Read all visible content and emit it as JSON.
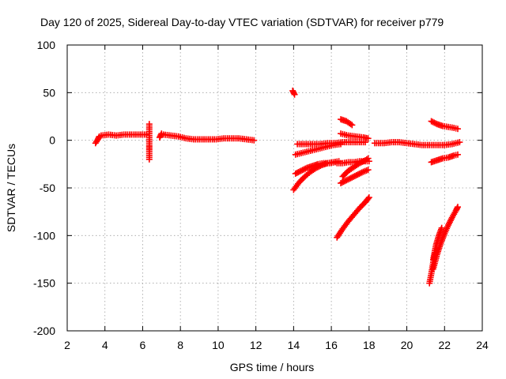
{
  "chart_data": {
    "type": "scatter",
    "title": "Day 120 of 2025, Sidereal Day-to-day VTEC variation (SDTVAR) for receiver p779",
    "xlabel": "GPS time / hours",
    "ylabel": "SDTVAR / TECUs",
    "xlim": [
      2,
      24
    ],
    "ylim": [
      -200,
      100
    ],
    "xticks": [
      2,
      4,
      6,
      8,
      10,
      12,
      14,
      16,
      18,
      20,
      22,
      24
    ],
    "yticks": [
      -200,
      -150,
      -100,
      -50,
      0,
      50,
      100
    ],
    "grid": true,
    "marker_color": "#ff0000",
    "marker": "plus",
    "series": [
      {
        "name": "SDTVAR",
        "segments": [
          {
            "x": [
              3.5,
              3.6,
              3.7
            ],
            "y": [
              -3,
              0,
              4
            ]
          },
          {
            "x": [
              3.8,
              4.2,
              4.6,
              5.0,
              5.4,
              5.8,
              6.2
            ],
            "y": [
              5,
              6,
              5,
              6,
              6,
              6,
              6
            ]
          },
          {
            "x": [
              6.35,
              6.35,
              6.35,
              6.35,
              6.35
            ],
            "y": [
              17,
              3,
              -5,
              -10,
              -20
            ]
          },
          {
            "x": [
              6.9,
              7.0
            ],
            "y": [
              3,
              7
            ]
          },
          {
            "x": [
              7.1,
              7.5,
              7.9,
              8.3,
              8.7,
              9.1,
              9.5,
              9.9,
              10.3,
              10.7,
              11.1,
              11.5,
              11.9
            ],
            "y": [
              6,
              5,
              4,
              2,
              1,
              1,
              1,
              1,
              2,
              2,
              2,
              1,
              0
            ]
          },
          {
            "x": [
              13.95,
              14.05
            ],
            "y": [
              52,
              48
            ]
          },
          {
            "x": [
              14.0,
              14.3,
              14.6,
              14.9,
              15.2,
              15.5,
              15.8,
              16.1,
              16.4
            ],
            "y": [
              -52,
              -44,
              -38,
              -33,
              -29,
              -26,
              -24,
              -23,
              -22
            ]
          },
          {
            "x": [
              14.1,
              14.4,
              14.7,
              15.0,
              15.3,
              15.6,
              15.9,
              16.2
            ],
            "y": [
              -35,
              -32,
              -29,
              -27,
              -25,
              -24,
              -24,
              -23
            ]
          },
          {
            "x": [
              14.1,
              14.5,
              14.9,
              15.3,
              15.7,
              16.1,
              16.5
            ],
            "y": [
              -15,
              -13,
              -11,
              -9,
              -7,
              -5,
              -4
            ]
          },
          {
            "x": [
              14.2,
              14.6,
              15.0,
              15.4,
              15.8,
              16.2,
              16.6,
              17.0,
              17.4,
              17.8
            ],
            "y": [
              -4,
              -4,
              -4,
              -4,
              -3,
              -3,
              -2,
              -2,
              -2,
              -2
            ]
          },
          {
            "x": [
              16.3,
              16.6,
              16.9,
              17.2,
              17.5,
              17.8,
              18.0
            ],
            "y": [
              -24,
              -24,
              -23,
              -23,
              -22,
              -22,
              -22
            ]
          },
          {
            "x": [
              16.5,
              16.8,
              17.1,
              17.4,
              17.7,
              17.95
            ],
            "y": [
              -45,
              -42,
              -39,
              -36,
              -33,
              -31
            ]
          },
          {
            "x": [
              16.6,
              16.9,
              17.2,
              17.5,
              17.8,
              17.95
            ],
            "y": [
              -38,
              -32,
              -28,
              -24,
              -21,
              -19
            ]
          },
          {
            "x": [
              16.5,
              16.8,
              17.1
            ],
            "y": [
              22,
              20,
              16
            ]
          },
          {
            "x": [
              16.5,
              16.9,
              17.3,
              17.7,
              17.95
            ],
            "y": [
              7,
              5,
              4,
              3,
              2
            ]
          },
          {
            "x": [
              16.3,
              16.6,
              16.9,
              17.2,
              17.5,
              17.8,
              18.0
            ],
            "y": [
              -102,
              -93,
              -85,
              -78,
              -71,
              -65,
              -60
            ]
          },
          {
            "x": [
              18.3,
              18.8,
              19.2,
              19.6,
              20.0,
              20.4,
              20.8,
              21.2,
              21.6,
              22.0,
              22.4,
              22.8
            ],
            "y": [
              -3,
              -3,
              -2,
              -2,
              -3,
              -4,
              -5,
              -5,
              -5,
              -5,
              -4,
              -2
            ]
          },
          {
            "x": [
              21.3,
              21.6,
              21.9,
              22.2,
              22.5,
              22.7
            ],
            "y": [
              20,
              17,
              15,
              14,
              13,
              12
            ]
          },
          {
            "x": [
              21.3,
              21.6,
              21.9,
              22.2,
              22.5,
              22.7
            ],
            "y": [
              -23,
              -21,
              -19,
              -18,
              -16,
              -15
            ]
          },
          {
            "x": [
              21.2,
              21.3,
              21.4,
              21.5
            ],
            "y": [
              -150,
              -140,
              -128,
              -118
            ]
          },
          {
            "x": [
              21.4,
              21.6,
              21.8,
              22.0,
              22.2,
              22.4,
              22.6,
              22.7
            ],
            "y": [
              -135,
              -120,
              -108,
              -98,
              -89,
              -81,
              -74,
              -70
            ]
          },
          {
            "x": [
              21.4,
              21.55,
              21.7,
              21.85
            ],
            "y": [
              -125,
              -110,
              -100,
              -92
            ]
          }
        ]
      }
    ]
  }
}
